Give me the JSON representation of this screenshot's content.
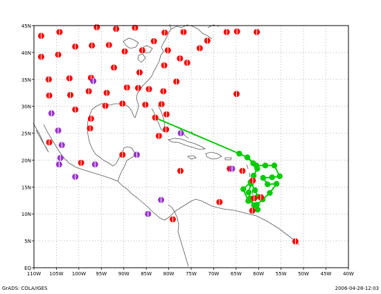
{
  "map": {
    "lon_range": [
      -110,
      -40
    ],
    "lat_range": [
      0,
      45
    ],
    "x_ticks": [
      "110W",
      "105W",
      "100W",
      "95W",
      "90W",
      "85W",
      "80W",
      "75W",
      "70W",
      "65W",
      "60W",
      "55W",
      "50W",
      "45W",
      "40W"
    ],
    "y_ticks": [
      "EQ",
      "5N",
      "10N",
      "15N",
      "20N",
      "25N",
      "30N",
      "35N",
      "40N",
      "45N"
    ],
    "grid": "dotted",
    "colors": {
      "frame": "#000000",
      "coast": "#555555",
      "grid": "#888888",
      "station_red": "#ff0000",
      "station_purple": "#9933cc",
      "track": "#00cc00"
    }
  },
  "footer": {
    "left": "GrADS: COLA/IGES",
    "right": "2006-04-28-12:03"
  },
  "stations": {
    "red": [
      [
        -108.4,
        43.1
      ],
      [
        -104.3,
        43.8
      ],
      [
        -96.0,
        44.7
      ],
      [
        -91.7,
        44.4
      ],
      [
        -87.5,
        44.6
      ],
      [
        -80.9,
        43.7
      ],
      [
        -76.7,
        43.8
      ],
      [
        -67.1,
        43.8
      ],
      [
        -64.8,
        43.9
      ],
      [
        -60.4,
        43.8
      ],
      [
        -108.4,
        39.2
      ],
      [
        -104.6,
        39.6
      ],
      [
        -100.8,
        41.1
      ],
      [
        -97.1,
        41.3
      ],
      [
        -93.3,
        41.4
      ],
      [
        -89.8,
        40.2
      ],
      [
        -85.9,
        40.4
      ],
      [
        -83.3,
        42.1
      ],
      [
        -80.2,
        40.4
      ],
      [
        -77.5,
        38.9
      ],
      [
        -75.9,
        38.1
      ],
      [
        -73.1,
        40.8
      ],
      [
        -71.4,
        42.2
      ],
      [
        -106.7,
        35.0
      ],
      [
        -102.1,
        35.2
      ],
      [
        -97.3,
        35.3
      ],
      [
        -92.2,
        37.2
      ],
      [
        -86.5,
        36.3
      ],
      [
        -81.0,
        37.6
      ],
      [
        -106.6,
        32.0
      ],
      [
        -101.9,
        32.1
      ],
      [
        -97.8,
        32.8
      ],
      [
        -93.8,
        32.5
      ],
      [
        -89.3,
        33.5
      ],
      [
        -86.8,
        33.4
      ],
      [
        -84.4,
        33.2
      ],
      [
        -81.2,
        32.8
      ],
      [
        -78.3,
        34.6
      ],
      [
        -64.9,
        32.3
      ],
      [
        -100.8,
        29.4
      ],
      [
        -97.3,
        27.7
      ],
      [
        -94.1,
        30.1
      ],
      [
        -90.3,
        30.5
      ],
      [
        -85.2,
        30.3
      ],
      [
        -81.6,
        30.4
      ],
      [
        -97.5,
        25.9
      ],
      [
        -80.6,
        25.7
      ],
      [
        -82.2,
        24.5
      ],
      [
        -83.0,
        27.9
      ],
      [
        -80.5,
        28.5
      ],
      [
        -106.6,
        23.3
      ],
      [
        -99.5,
        19.5
      ],
      [
        -90.3,
        21.0
      ],
      [
        -77.4,
        18.0
      ],
      [
        -68.7,
        12.2
      ],
      [
        -79.1,
        9.0
      ],
      [
        -66.4,
        18.4
      ],
      [
        -63.6,
        18.0
      ],
      [
        -61.3,
        16.2
      ],
      [
        -61.0,
        12.9
      ],
      [
        -59.5,
        13.1
      ],
      [
        -61.4,
        10.6
      ],
      [
        -51.8,
        4.9
      ]
    ],
    "purple": [
      [
        -106.1,
        28.7
      ],
      [
        -104.6,
        25.5
      ],
      [
        -103.8,
        22.8
      ],
      [
        -104.1,
        20.4
      ],
      [
        -104.4,
        19.2
      ],
      [
        -100.8,
        16.9
      ],
      [
        -96.4,
        19.2
      ],
      [
        -96.8,
        34.7
      ],
      [
        -87.1,
        21.0
      ],
      [
        -84.6,
        10.0
      ],
      [
        -81.7,
        12.6
      ],
      [
        -77.3,
        25.0
      ],
      [
        -65.9,
        18.4
      ]
    ]
  },
  "track": {
    "line": [
      [
        -82.8,
        27.8
      ],
      [
        -64.3,
        21.2
      ],
      [
        -62.5,
        20.5
      ],
      [
        -61.2,
        19.4
      ],
      [
        -60.3,
        18.4
      ],
      [
        -61.1,
        17.1
      ],
      [
        -61.7,
        15.6
      ],
      [
        -62.2,
        14.0
      ],
      [
        -61.9,
        12.9
      ],
      [
        -61.0,
        11.6
      ],
      [
        -60.2,
        10.8
      ]
    ],
    "loop": [
      [
        -62.5,
        20.5
      ],
      [
        -60.5,
        19.0
      ],
      [
        -58.5,
        19.0
      ],
      [
        -56.5,
        19.0
      ],
      [
        -55.3,
        17.0
      ],
      [
        -57.0,
        16.8
      ],
      [
        -59.0,
        16.7
      ],
      [
        -58.0,
        15.5
      ],
      [
        -56.0,
        15.6
      ],
      [
        -57.5,
        13.9
      ],
      [
        -59.1,
        12.7
      ],
      [
        -60.4,
        11.7
      ],
      [
        -62.3,
        12.4
      ],
      [
        -63.4,
        14.6
      ],
      [
        -61.8,
        15.9
      ],
      [
        -60.8,
        14.4
      ],
      [
        -60.2,
        13.2
      ]
    ]
  }
}
